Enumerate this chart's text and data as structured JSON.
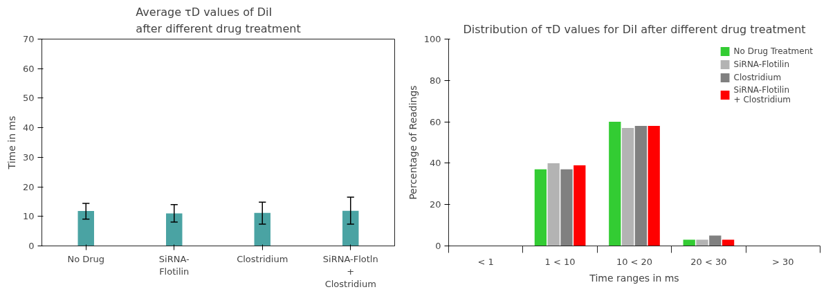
{
  "chart_data": [
    {
      "type": "bar",
      "title": "Average τD values of DiI\nafter different drug treatment",
      "ylabel": "Time in ms",
      "categories": [
        "No Drug",
        "SiRNA-\nFlotilin",
        "Clostridium",
        "SiRNA-Flotln\n+\nClostridium"
      ],
      "values": [
        11.8,
        11.0,
        11.2,
        11.9
      ],
      "color": "#4aa3a3",
      "errors": [
        [
          9.1,
          14.4
        ],
        [
          8.1,
          14.0
        ],
        [
          7.4,
          14.8
        ],
        [
          7.4,
          16.5
        ]
      ],
      "ylim": [
        0,
        70
      ],
      "yticks": [
        0,
        10,
        20,
        30,
        40,
        50,
        60,
        70
      ],
      "grid": false,
      "legend": false
    },
    {
      "type": "bar",
      "title": "Distribution of τD values for DiI after different drug treatment",
      "xlabel": "Time ranges in ms",
      "ylabel": "Percentage of Readings",
      "categories": [
        "< 1",
        "1 < 10",
        "10 < 20",
        "20 < 30",
        "> 30"
      ],
      "series": [
        {
          "name": "No Drug Treatment",
          "color": "#33cc33",
          "values": [
            0,
            37,
            60,
            3,
            0
          ]
        },
        {
          "name": "SiRNA-Flotilin",
          "color": "#b3b3b3",
          "values": [
            0,
            40,
            57,
            3,
            0
          ]
        },
        {
          "name": "Clostridium",
          "color": "#808080",
          "values": [
            0,
            37,
            58,
            5,
            0
          ]
        },
        {
          "name": "SiRNA-Flotilin\n+ Clostridium",
          "color": "#ff0000",
          "values": [
            0,
            39,
            58,
            3,
            0
          ]
        }
      ],
      "ylim": [
        0,
        100
      ],
      "yticks": [
        0,
        20,
        40,
        60,
        80,
        100
      ],
      "grid": false,
      "legend": "top right"
    }
  ]
}
